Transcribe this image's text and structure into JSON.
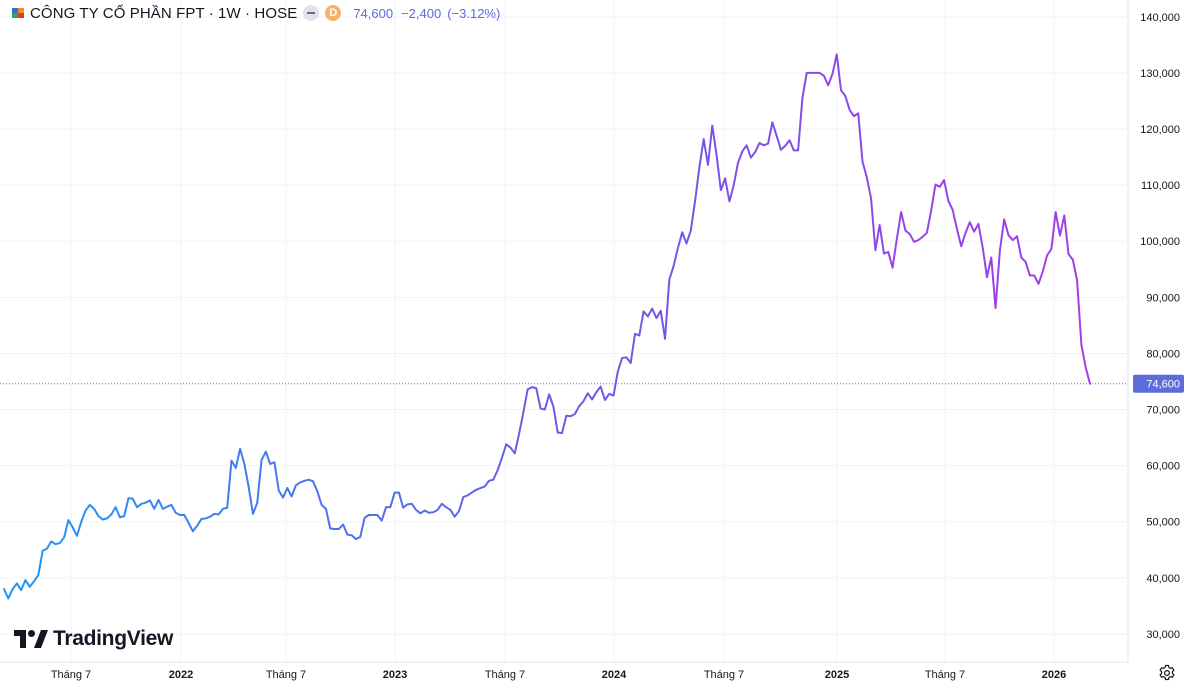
{
  "header": {
    "symbol_title": "CÔNG TY CỔ PHẦN FPT · 1W · HOSE",
    "badge_letter": "D",
    "last_price": "74,600",
    "change": "−2,400",
    "change_pct": "(−3.12%)"
  },
  "brand": {
    "logo_text": "TradingView"
  },
  "colors": {
    "line_start": "#2196F3",
    "line_mid": "#6A5BE8",
    "line_end": "#A53CE8",
    "last_price_label_bg": "#5B6CDB",
    "grid": "#F0F3FA"
  },
  "icons": [
    "flag-icon",
    "dash-icon",
    "tradingview-logo-icon",
    "settings-gear-icon"
  ],
  "chart_data": {
    "type": "line",
    "title": "CÔNG TY CỔ PHẦN FPT · 1W · HOSE",
    "grid": true,
    "y_scale": "linear",
    "ylim": [
      25000,
      143000
    ],
    "y_ticks": [
      30000,
      40000,
      50000,
      60000,
      70000,
      80000,
      90000,
      100000,
      110000,
      120000,
      130000,
      140000
    ],
    "y_tick_labels": [
      "30,000",
      "40,000",
      "50,000",
      "60,000",
      "70,000",
      "80,000",
      "90,000",
      "100,000",
      "110,000",
      "120,000",
      "130,000",
      "140,000"
    ],
    "x_tick_labels": [
      "Tháng 7",
      "2022",
      "Tháng 7",
      "2023",
      "Tháng 7",
      "2024",
      "Tháng 7",
      "2025",
      "Tháng 7",
      "2026"
    ],
    "last_value": 74600,
    "last_value_label": "74,600",
    "series": [
      {
        "values": [
          38000,
          36300,
          38000,
          39000,
          37800,
          39600,
          38400,
          39400,
          40500,
          44800,
          45200,
          46500,
          46000,
          46200,
          47200,
          50300,
          49000,
          47500,
          50000,
          52000,
          53000,
          52300,
          51000,
          50400,
          50600,
          51300,
          52600,
          50800,
          51000,
          54200,
          54100,
          52600,
          53200,
          53400,
          53800,
          52300,
          53900,
          52300,
          52700,
          53000,
          51600,
          51200,
          51200,
          49800,
          48300,
          49300,
          50500,
          50600,
          50900,
          51400,
          51300,
          52300,
          52500,
          60900,
          59600,
          63000,
          60300,
          56200,
          51400,
          53400,
          61000,
          62500,
          60300,
          60600,
          55600,
          54300,
          56000,
          54500,
          56500,
          57000,
          57300,
          57500,
          57200,
          55400,
          53000,
          52300,
          48800,
          48700,
          48700,
          49500,
          47700,
          47600,
          46900,
          47300,
          50700,
          51200,
          51200,
          51200,
          50200,
          52600,
          52600,
          55200,
          55200,
          52500,
          53100,
          53200,
          52100,
          51500,
          52000,
          51600,
          51700,
          52100,
          53200,
          52600,
          52100,
          50900,
          51900,
          54400,
          54700,
          55200,
          55700,
          56000,
          56300,
          57300,
          57500,
          59200,
          61400,
          63800,
          63200,
          62200,
          65700,
          69500,
          73600,
          74000,
          73800,
          70200,
          70000,
          72700,
          70500,
          65900,
          65800,
          68900,
          68800,
          69200,
          70600,
          71500,
          72900,
          71800,
          73100,
          74100,
          71700,
          72800,
          72500,
          76800,
          79200,
          79300,
          78300,
          83500,
          83200,
          87500,
          86600,
          88000,
          86300,
          87600,
          82600,
          93200,
          95600,
          98800,
          101600,
          99600,
          101900,
          107200,
          113200,
          118200,
          113600,
          120600,
          115400,
          109100,
          111200,
          107100,
          110000,
          114000,
          116000,
          117100,
          114900,
          115900,
          117500,
          117100,
          117400,
          121200,
          118800,
          116300,
          117000,
          118000,
          116200,
          116200,
          125500,
          130000,
          130000,
          130000,
          130000,
          129500,
          127800,
          129800,
          133300,
          126900,
          125900,
          123400,
          122300,
          122800,
          114200,
          111400,
          107600,
          98400,
          102900,
          97800,
          98100,
          95300,
          100400,
          105200,
          101900,
          101300,
          99900,
          100200,
          100800,
          101500,
          105500,
          110100,
          109700,
          110900,
          107200,
          105600,
          102200,
          99100,
          101500,
          103400,
          101700,
          103100,
          98900,
          93600,
          97100,
          88100,
          98300,
          103900,
          101100,
          100200,
          100900,
          97100,
          96300,
          93900,
          93900,
          92400,
          94600,
          97500,
          98600,
          105200,
          101000,
          104600,
          97700,
          96700,
          93000,
          81500,
          77500,
          74600
        ]
      }
    ]
  }
}
